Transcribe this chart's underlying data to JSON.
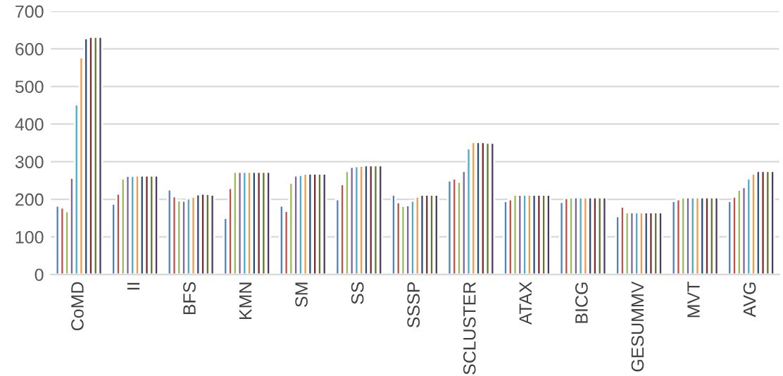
{
  "chart_data": {
    "type": "bar",
    "categories": [
      "CoMD",
      "II",
      "BFS",
      "KMN",
      "SM",
      "SS",
      "SSSP",
      "SCLUSTER",
      "ATAX",
      "BICG",
      "GESUMMV",
      "MVT",
      "AVG"
    ],
    "series": [
      {
        "color": "#4f81bd",
        "values": [
          183,
          188,
          226,
          150,
          183,
          200,
          212,
          250,
          195,
          193,
          155,
          195,
          195
        ]
      },
      {
        "color": "#c0504d",
        "values": [
          178,
          215,
          208,
          230,
          169,
          240,
          192,
          255,
          200,
          203,
          180,
          200,
          207
        ]
      },
      {
        "color": "#9bbb59",
        "values": [
          168,
          255,
          197,
          273,
          244,
          275,
          182,
          246,
          212,
          205,
          165,
          205,
          225
        ]
      },
      {
        "color": "#8064a2",
        "values": [
          257,
          262,
          196,
          273,
          263,
          286,
          184,
          275,
          212,
          205,
          165,
          205,
          232
        ]
      },
      {
        "color": "#4bacc6",
        "values": [
          452,
          262,
          202,
          273,
          265,
          288,
          196,
          335,
          212,
          205,
          165,
          205,
          255
        ]
      },
      {
        "color": "#f79646",
        "values": [
          577,
          263,
          207,
          273,
          268,
          289,
          207,
          352,
          212,
          205,
          165,
          205,
          268
        ]
      },
      {
        "color": "#2c4d75",
        "values": [
          628,
          263,
          213,
          273,
          268,
          290,
          212,
          352,
          212,
          205,
          165,
          205,
          275
        ]
      },
      {
        "color": "#772c2a",
        "values": [
          632,
          263,
          215,
          273,
          268,
          290,
          212,
          352,
          212,
          205,
          165,
          205,
          275
        ]
      },
      {
        "color": "#5f7530",
        "values": [
          632,
          263,
          214,
          273,
          268,
          290,
          212,
          350,
          212,
          205,
          165,
          205,
          275
        ]
      },
      {
        "color": "#4d3b62",
        "values": [
          632,
          263,
          212,
          273,
          268,
          290,
          212,
          350,
          212,
          205,
          165,
          205,
          275
        ]
      }
    ],
    "ylim": [
      0,
      700
    ],
    "yticks": [
      0,
      100,
      200,
      300,
      400,
      500,
      600,
      700
    ],
    "grid": "y"
  }
}
